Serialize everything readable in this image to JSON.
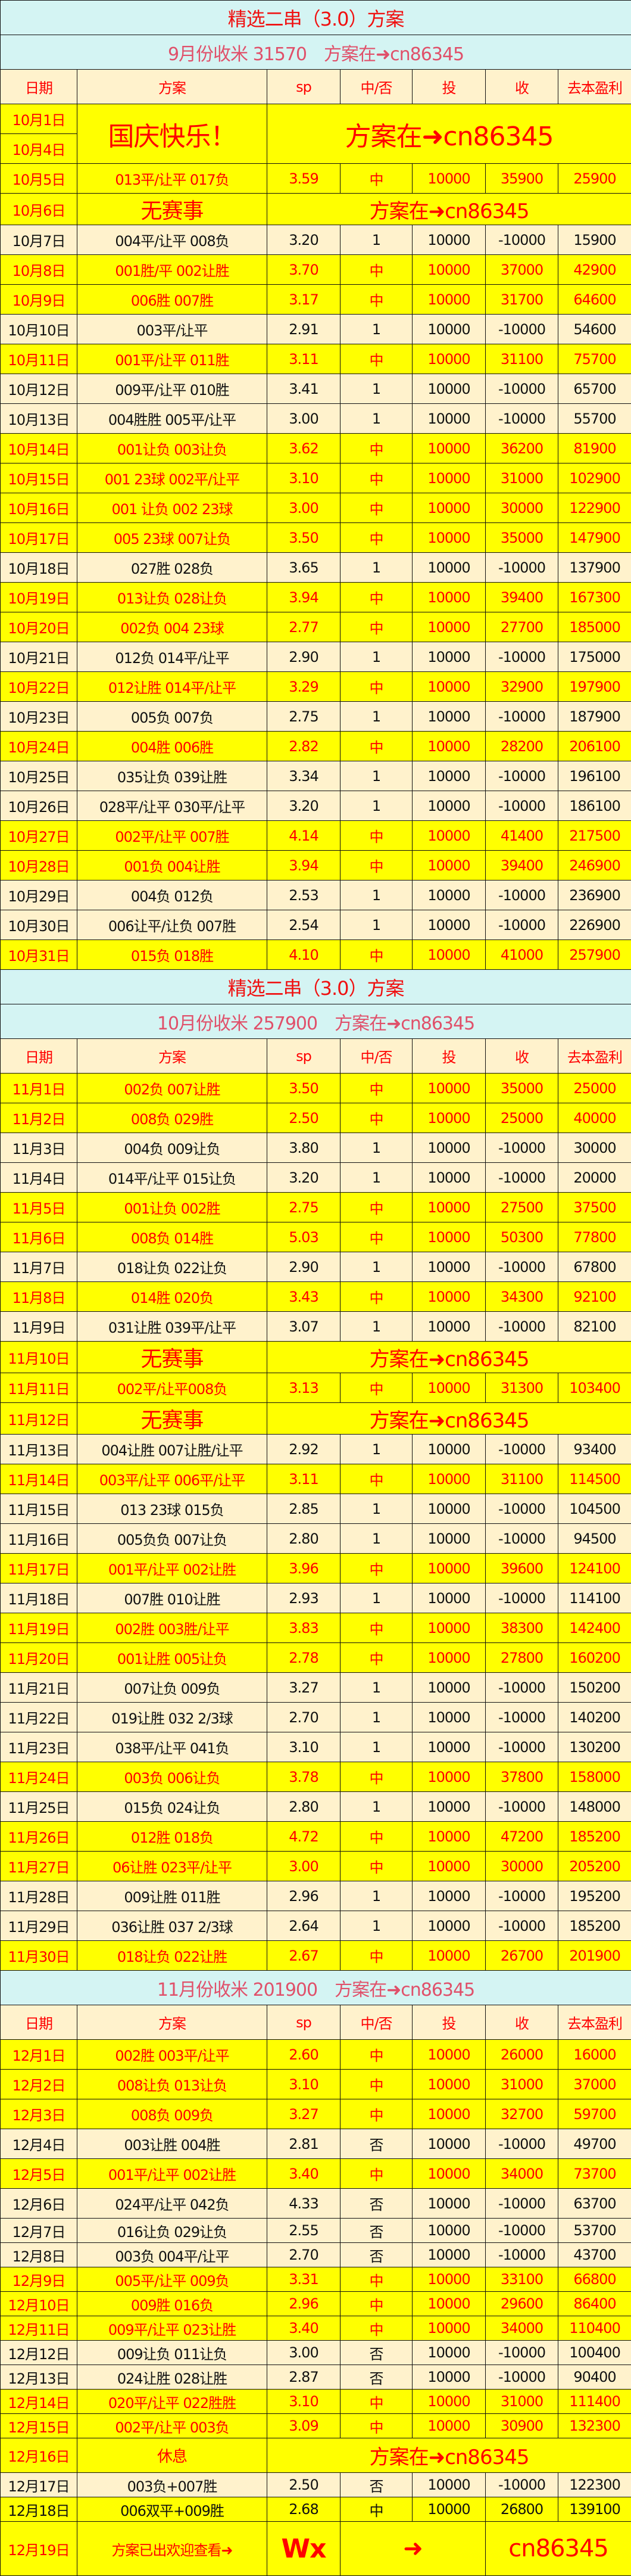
{
  "header": [
    "日期",
    "方案",
    "sp",
    "中/否",
    "投",
    "收",
    "去本盈利"
  ],
  "colors": {
    "win_bg": "#ffff00",
    "loss_bg": "#fff2cc",
    "band_bg": "#d4f4f3",
    "win_text": "#ff0000",
    "loss_text": "#111111"
  },
  "sections": [
    {
      "title": "精选二串（3.0）方案",
      "subtitle": "9月份收米 31570　方案在➜cn86345",
      "rows": [
        {
          "type": "holiday",
          "dates": [
            "10月1日",
            "10月4日"
          ],
          "note": "国庆快乐！",
          "link": "方案在➜cn86345"
        },
        {
          "d": "10月5日",
          "plan": "013平/让平 017负",
          "sp": "3.59",
          "hit": "中",
          "stake": "10000",
          "ret": "35900",
          "profit": "25900",
          "style": "win"
        },
        {
          "type": "note",
          "d": "10月6日",
          "note": "无赛事",
          "link": "方案在➜cn86345"
        },
        {
          "d": "10月7日",
          "plan": "004平/让平 008负",
          "sp": "3.20",
          "hit": "1",
          "stake": "10000",
          "ret": "-10000",
          "profit": "15900",
          "style": "loss"
        },
        {
          "d": "10月8日",
          "plan": "001胜/平 002让胜",
          "sp": "3.70",
          "hit": "中",
          "stake": "10000",
          "ret": "37000",
          "profit": "42900",
          "style": "win"
        },
        {
          "d": "10月9日",
          "plan": "006胜 007胜",
          "sp": "3.17",
          "hit": "中",
          "stake": "10000",
          "ret": "31700",
          "profit": "64600",
          "style": "win"
        },
        {
          "d": "10月10日",
          "plan": "003平/让平",
          "sp": "2.91",
          "hit": "1",
          "stake": "10000",
          "ret": "-10000",
          "profit": "54600",
          "style": "loss"
        },
        {
          "d": "10月11日",
          "plan": "001平/让平 011胜",
          "sp": "3.11",
          "hit": "中",
          "stake": "10000",
          "ret": "31100",
          "profit": "75700",
          "style": "win"
        },
        {
          "d": "10月12日",
          "plan": "009平/让平 010胜",
          "sp": "3.41",
          "hit": "1",
          "stake": "10000",
          "ret": "-10000",
          "profit": "65700",
          "style": "loss"
        },
        {
          "d": "10月13日",
          "plan": "004胜胜 005平/让平",
          "sp": "3.00",
          "hit": "1",
          "stake": "10000",
          "ret": "-10000",
          "profit": "55700",
          "style": "loss"
        },
        {
          "d": "10月14日",
          "plan": "001让负 003让负",
          "sp": "3.62",
          "hit": "中",
          "stake": "10000",
          "ret": "36200",
          "profit": "81900",
          "style": "win"
        },
        {
          "d": "10月15日",
          "plan": "001 23球 002平/让平",
          "sp": "3.10",
          "hit": "中",
          "stake": "10000",
          "ret": "31000",
          "profit": "102900",
          "style": "win"
        },
        {
          "d": "10月16日",
          "plan": "001 让负 002 23球",
          "sp": "3.00",
          "hit": "中",
          "stake": "10000",
          "ret": "30000",
          "profit": "122900",
          "style": "win"
        },
        {
          "d": "10月17日",
          "plan": "005 23球 007让负",
          "sp": "3.50",
          "hit": "中",
          "stake": "10000",
          "ret": "35000",
          "profit": "147900",
          "style": "win"
        },
        {
          "d": "10月18日",
          "plan": "027胜 028负",
          "sp": "3.65",
          "hit": "1",
          "stake": "10000",
          "ret": "-10000",
          "profit": "137900",
          "style": "loss"
        },
        {
          "d": "10月19日",
          "plan": "013让负 028让负",
          "sp": "3.94",
          "hit": "中",
          "stake": "10000",
          "ret": "39400",
          "profit": "167300",
          "style": "win"
        },
        {
          "d": "10月20日",
          "plan": "002负 004 23球",
          "sp": "2.77",
          "hit": "中",
          "stake": "10000",
          "ret": "27700",
          "profit": "185000",
          "style": "win"
        },
        {
          "d": "10月21日",
          "plan": "012负 014平/让平",
          "sp": "2.90",
          "hit": "1",
          "stake": "10000",
          "ret": "-10000",
          "profit": "175000",
          "style": "loss"
        },
        {
          "d": "10月22日",
          "plan": "012让胜 014平/让平",
          "sp": "3.29",
          "hit": "中",
          "stake": "10000",
          "ret": "32900",
          "profit": "197900",
          "style": "win"
        },
        {
          "d": "10月23日",
          "plan": "005负 007负",
          "sp": "2.75",
          "hit": "1",
          "stake": "10000",
          "ret": "-10000",
          "profit": "187900",
          "style": "loss"
        },
        {
          "d": "10月24日",
          "plan": "004胜 006胜",
          "sp": "2.82",
          "hit": "中",
          "stake": "10000",
          "ret": "28200",
          "profit": "206100",
          "style": "win"
        },
        {
          "d": "10月25日",
          "plan": "035让负 039让胜",
          "sp": "3.34",
          "hit": "1",
          "stake": "10000",
          "ret": "-10000",
          "profit": "196100",
          "style": "loss"
        },
        {
          "d": "10月26日",
          "plan": "028平/让平 030平/让平",
          "sp": "3.20",
          "hit": "1",
          "stake": "10000",
          "ret": "-10000",
          "profit": "186100",
          "style": "loss"
        },
        {
          "d": "10月27日",
          "plan": "002平/让平 007胜",
          "sp": "4.14",
          "hit": "中",
          "stake": "10000",
          "ret": "41400",
          "profit": "217500",
          "style": "win"
        },
        {
          "d": "10月28日",
          "plan": "001负 004让胜",
          "sp": "3.94",
          "hit": "中",
          "stake": "10000",
          "ret": "39400",
          "profit": "246900",
          "style": "win"
        },
        {
          "d": "10月29日",
          "plan": "004负 012负",
          "sp": "2.53",
          "hit": "1",
          "stake": "10000",
          "ret": "-10000",
          "profit": "236900",
          "style": "loss"
        },
        {
          "d": "10月30日",
          "plan": "006让平/让负 007胜",
          "sp": "2.54",
          "hit": "1",
          "stake": "10000",
          "ret": "-10000",
          "profit": "226900",
          "style": "loss"
        },
        {
          "d": "10月31日",
          "plan": "015负 018胜",
          "sp": "4.10",
          "hit": "中",
          "stake": "10000",
          "ret": "41000",
          "profit": "257900",
          "style": "win"
        }
      ]
    },
    {
      "title": "精选二串（3.0）方案",
      "subtitle": "10月份收米 257900　方案在➜cn86345",
      "rows": [
        {
          "d": "11月1日",
          "plan": "002负 007让胜",
          "sp": "3.50",
          "hit": "中",
          "stake": "10000",
          "ret": "35000",
          "profit": "25000",
          "style": "win"
        },
        {
          "d": "11月2日",
          "plan": "008负 029胜",
          "sp": "2.50",
          "hit": "中",
          "stake": "10000",
          "ret": "25000",
          "profit": "40000",
          "style": "win"
        },
        {
          "d": "11月3日",
          "plan": "004负 009让负",
          "sp": "3.80",
          "hit": "1",
          "stake": "10000",
          "ret": "-10000",
          "profit": "30000",
          "style": "loss"
        },
        {
          "d": "11月4日",
          "plan": "014平/让平 015让负",
          "sp": "3.20",
          "hit": "1",
          "stake": "10000",
          "ret": "-10000",
          "profit": "20000",
          "style": "loss"
        },
        {
          "d": "11月5日",
          "plan": "001让负 002胜",
          "sp": "2.75",
          "hit": "中",
          "stake": "10000",
          "ret": "27500",
          "profit": "37500",
          "style": "win"
        },
        {
          "d": "11月6日",
          "plan": "008负 014胜",
          "sp": "5.03",
          "hit": "中",
          "stake": "10000",
          "ret": "50300",
          "profit": "77800",
          "style": "win"
        },
        {
          "d": "11月7日",
          "plan": "018让负 022让负",
          "sp": "2.90",
          "hit": "1",
          "stake": "10000",
          "ret": "-10000",
          "profit": "67800",
          "style": "loss"
        },
        {
          "d": "11月8日",
          "plan": "014胜 020负",
          "sp": "3.43",
          "hit": "中",
          "stake": "10000",
          "ret": "34300",
          "profit": "92100",
          "style": "win"
        },
        {
          "d": "11月9日",
          "plan": "031让胜 039平/让平",
          "sp": "3.07",
          "hit": "1",
          "stake": "10000",
          "ret": "-10000",
          "profit": "82100",
          "style": "loss"
        },
        {
          "type": "note",
          "d": "11月10日",
          "note": "无赛事",
          "link": "方案在➜cn86345"
        },
        {
          "d": "11月11日",
          "plan": "002平/让平008负",
          "sp": "3.13",
          "hit": "中",
          "stake": "10000",
          "ret": "31300",
          "profit": "103400",
          "style": "win"
        },
        {
          "type": "note",
          "d": "11月12日",
          "note": "无赛事",
          "link": "方案在➜cn86345"
        },
        {
          "d": "11月13日",
          "plan": "004让胜 007让胜/让平",
          "sp": "2.92",
          "hit": "1",
          "stake": "10000",
          "ret": "-10000",
          "profit": "93400",
          "style": "loss"
        },
        {
          "d": "11月14日",
          "plan": "003平/让平 006平/让平",
          "sp": "3.11",
          "hit": "中",
          "stake": "10000",
          "ret": "31100",
          "profit": "114500",
          "style": "win"
        },
        {
          "d": "11月15日",
          "plan": "013 23球 015负",
          "sp": "2.85",
          "hit": "1",
          "stake": "10000",
          "ret": "-10000",
          "profit": "104500",
          "style": "loss"
        },
        {
          "d": "11月16日",
          "plan": "005负负 007让负",
          "sp": "2.80",
          "hit": "1",
          "stake": "10000",
          "ret": "-10000",
          "profit": "94500",
          "style": "loss"
        },
        {
          "d": "11月17日",
          "plan": "001平/让平 002让胜",
          "sp": "3.96",
          "hit": "中",
          "stake": "10000",
          "ret": "39600",
          "profit": "124100",
          "style": "win"
        },
        {
          "d": "11月18日",
          "plan": "007胜 010让胜",
          "sp": "2.93",
          "hit": "1",
          "stake": "10000",
          "ret": "-10000",
          "profit": "114100",
          "style": "loss"
        },
        {
          "d": "11月19日",
          "plan": "002胜 003胜/让平",
          "sp": "3.83",
          "hit": "中",
          "stake": "10000",
          "ret": "38300",
          "profit": "142400",
          "style": "win"
        },
        {
          "d": "11月20日",
          "plan": "001让胜 005让负",
          "sp": "2.78",
          "hit": "中",
          "stake": "10000",
          "ret": "27800",
          "profit": "160200",
          "style": "win"
        },
        {
          "d": "11月21日",
          "plan": "007让负 009负",
          "sp": "3.27",
          "hit": "1",
          "stake": "10000",
          "ret": "-10000",
          "profit": "150200",
          "style": "loss"
        },
        {
          "d": "11月22日",
          "plan": "019让胜 032 2/3球",
          "sp": "2.70",
          "hit": "1",
          "stake": "10000",
          "ret": "-10000",
          "profit": "140200",
          "style": "loss"
        },
        {
          "d": "11月23日",
          "plan": "038平/让平 041负",
          "sp": "3.10",
          "hit": "1",
          "stake": "10000",
          "ret": "-10000",
          "profit": "130200",
          "style": "loss"
        },
        {
          "d": "11月24日",
          "plan": "003负 006让负",
          "sp": "3.78",
          "hit": "中",
          "stake": "10000",
          "ret": "37800",
          "profit": "158000",
          "style": "win"
        },
        {
          "d": "11月25日",
          "plan": "015负 024让负",
          "sp": "2.80",
          "hit": "1",
          "stake": "10000",
          "ret": "-10000",
          "profit": "148000",
          "style": "loss"
        },
        {
          "d": "11月26日",
          "plan": "012胜 018负",
          "sp": "4.72",
          "hit": "中",
          "stake": "10000",
          "ret": "47200",
          "profit": "185200",
          "style": "win"
        },
        {
          "d": "11月27日",
          "plan": "06让胜 023平/让平",
          "sp": "3.00",
          "hit": "中",
          "stake": "10000",
          "ret": "30000",
          "profit": "205200",
          "style": "win"
        },
        {
          "d": "11月28日",
          "plan": "009让胜 011胜",
          "sp": "2.96",
          "hit": "1",
          "stake": "10000",
          "ret": "-10000",
          "profit": "195200",
          "style": "loss"
        },
        {
          "d": "11月29日",
          "plan": "036让胜 037 2/3球",
          "sp": "2.64",
          "hit": "1",
          "stake": "10000",
          "ret": "-10000",
          "profit": "185200",
          "style": "loss"
        },
        {
          "d": "11月30日",
          "plan": "018让负 022让胜",
          "sp": "2.67",
          "hit": "中",
          "stake": "10000",
          "ret": "26700",
          "profit": "201900",
          "style": "win"
        }
      ]
    },
    {
      "subtitle": "11月份收米 201900　方案在➜cn86345",
      "rows": [
        {
          "d": "12月1日",
          "plan": "002胜 003平/让平",
          "sp": "2.60",
          "hit": "中",
          "stake": "10000",
          "ret": "26000",
          "profit": "16000",
          "style": "win"
        },
        {
          "d": "12月2日",
          "plan": "008让负 013让负",
          "sp": "3.10",
          "hit": "中",
          "stake": "10000",
          "ret": "31000",
          "profit": "37000",
          "style": "win"
        },
        {
          "d": "12月3日",
          "plan": "008负 009负",
          "sp": "3.27",
          "hit": "中",
          "stake": "10000",
          "ret": "32700",
          "profit": "59700",
          "style": "win"
        },
        {
          "d": "12月4日",
          "plan": "003让胜 004胜",
          "sp": "2.81",
          "hit": "否",
          "stake": "10000",
          "ret": "-10000",
          "profit": "49700",
          "style": "loss"
        },
        {
          "d": "12月5日",
          "plan": "001平/让平 002让胜",
          "sp": "3.40",
          "hit": "中",
          "stake": "10000",
          "ret": "34000",
          "profit": "73700",
          "style": "win"
        },
        {
          "d": "12月6日",
          "plan": "024平/让平 042负",
          "sp": "4.33",
          "hit": "否",
          "stake": "10000",
          "ret": "-10000",
          "profit": "63700",
          "style": "loss"
        },
        {
          "d": "12月7日",
          "plan": "016让负 029让负",
          "sp": "2.55",
          "hit": "否",
          "stake": "10000",
          "ret": "-10000",
          "profit": "53700",
          "style": "loss"
        },
        {
          "d": "12月8日",
          "plan": "003负 004平/让平",
          "sp": "2.70",
          "hit": "否",
          "stake": "10000",
          "ret": "-10000",
          "profit": "43700",
          "style": "loss"
        },
        {
          "d": "12月9日",
          "plan": "005平/让平 009负",
          "sp": "3.31",
          "hit": "中",
          "stake": "10000",
          "ret": "33100",
          "profit": "66800",
          "style": "win"
        },
        {
          "d": "12月10日",
          "plan": "009胜 016负",
          "sp": "2.96",
          "hit": "中",
          "stake": "10000",
          "ret": "29600",
          "profit": "86400",
          "style": "win"
        },
        {
          "d": "12月11日",
          "plan": "009平/让平 023让胜",
          "sp": "3.40",
          "hit": "中",
          "stake": "10000",
          "ret": "34000",
          "profit": "110400",
          "style": "win"
        },
        {
          "d": "12月12日",
          "plan": "009让负 011让负",
          "sp": "3.00",
          "hit": "否",
          "stake": "10000",
          "ret": "-10000",
          "profit": "100400",
          "style": "loss"
        },
        {
          "d": "12月13日",
          "plan": "024让胜 028让胜",
          "sp": "2.87",
          "hit": "否",
          "stake": "10000",
          "ret": "-10000",
          "profit": "90400",
          "style": "loss"
        },
        {
          "d": "12月14日",
          "plan": "020平/让平 022胜胜",
          "sp": "3.10",
          "hit": "中",
          "stake": "10000",
          "ret": "31000",
          "profit": "111400",
          "style": "win"
        },
        {
          "d": "12月15日",
          "plan": "002平/让平 003负",
          "sp": "3.09",
          "hit": "中",
          "stake": "10000",
          "ret": "30900",
          "profit": "132300",
          "style": "win"
        },
        {
          "type": "rest",
          "d": "12月16日",
          "note": "休息",
          "link": "方案在➜cn86345"
        },
        {
          "d": "12月17日",
          "plan": "003负+007胜",
          "sp": "2.50",
          "hit": "否",
          "stake": "10000",
          "ret": "-10000",
          "profit": "122300",
          "style": "loss"
        },
        {
          "d": "12月18日",
          "plan": "006双平+009胜",
          "sp": "2.68",
          "hit": "中",
          "stake": "10000",
          "ret": "26800",
          "profit": "139100",
          "style": "winblack"
        },
        {
          "type": "final",
          "d": "12月19日",
          "plan": "方案已出欢迎查看➜",
          "sp": "Wx",
          "arrow": "➜",
          "contact": "cn86345"
        }
      ]
    }
  ]
}
